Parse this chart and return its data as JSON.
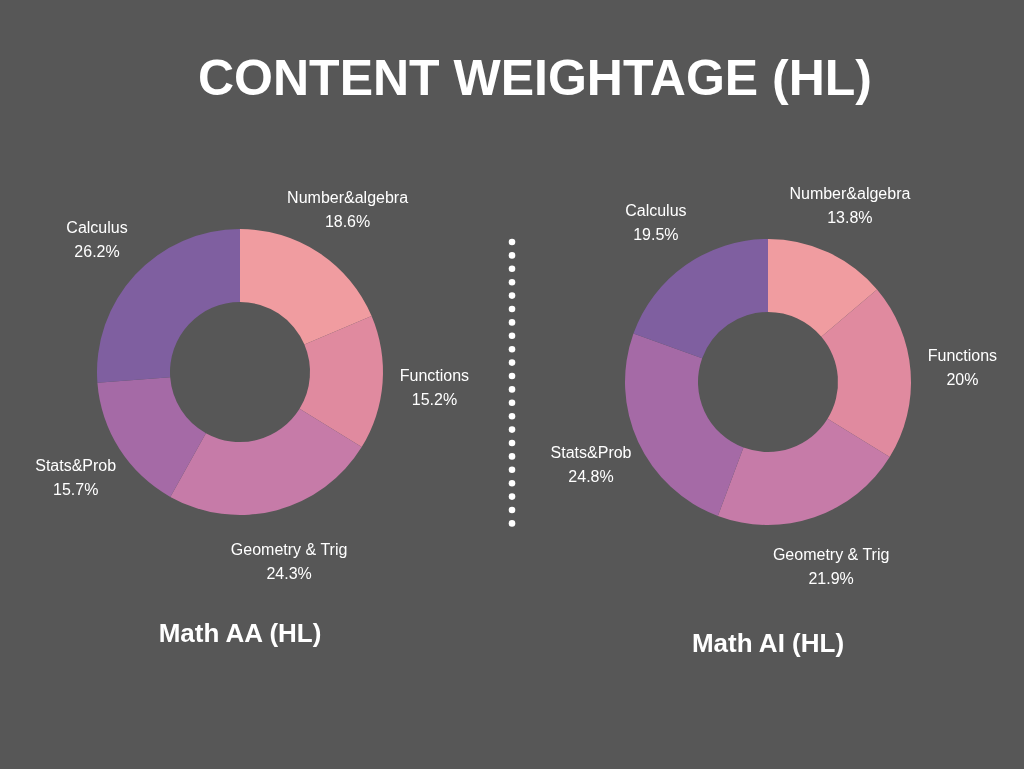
{
  "chart_data": [
    {
      "type": "donut",
      "title": "Math AA (HL)",
      "annotations": [
        "CONTENT WEIGHTAGE (HL)"
      ],
      "categories": [
        "Number&algebra",
        "Functions",
        "Geometry & Trig",
        "Stats&Prob",
        "Calculus"
      ],
      "values": [
        18.6,
        15.2,
        24.3,
        15.7,
        26.2
      ],
      "value_labels": [
        "18.6%",
        "15.2%",
        "24.3%",
        "15.7%",
        "26.2%"
      ],
      "colors": [
        "#f09ca0",
        "#e08a9f",
        "#c67ba8",
        "#a56aa6",
        "#7f5fa0"
      ]
    },
    {
      "type": "donut",
      "title": "Math AI (HL)",
      "categories": [
        "Number&algebra",
        "Functions",
        "Geometry & Trig",
        "Stats&Prob",
        "Calculus"
      ],
      "values": [
        13.8,
        20,
        21.9,
        24.8,
        19.5
      ],
      "value_labels": [
        "13.8%",
        "20%",
        "21.9%",
        "24.8%",
        "19.5%"
      ],
      "colors": [
        "#f09ca0",
        "#e08a9f",
        "#c67ba8",
        "#a56aa6",
        "#7f5fa0"
      ]
    }
  ]
}
